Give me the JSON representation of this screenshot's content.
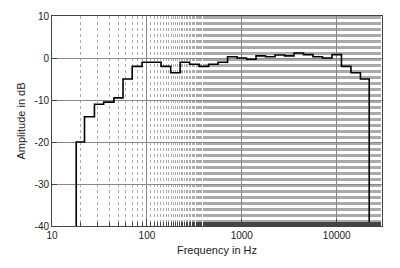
{
  "chart_data": {
    "type": "line",
    "line_style": "step",
    "x_label": "Frequency in Hz",
    "y_label": "Amplitude in dB",
    "x": [
      18,
      18,
      22,
      28,
      35,
      45,
      56,
      70,
      89,
      112,
      141,
      178,
      224,
      282,
      355,
      447,
      562,
      708,
      891,
      1122,
      1413,
      1778,
      2239,
      2818,
      3548,
      4467,
      5623,
      7079,
      8913,
      11220,
      14125,
      17783,
      22000
    ],
    "values": [
      -40,
      -20,
      -14,
      -11,
      -10.5,
      -9.5,
      -5,
      -2,
      -1,
      -1,
      -2,
      -3.5,
      -1,
      -1.5,
      -2,
      -1.5,
      -1,
      0.3,
      0,
      -0.3,
      0.5,
      0.3,
      0.7,
      0.5,
      1.2,
      0.8,
      0.3,
      0,
      0.8,
      -2,
      -3.5,
      -5,
      -40
    ],
    "color": "#000000",
    "log": "x",
    "xlim": [
      10,
      30000
    ],
    "xticks": [
      10,
      100,
      1000,
      10000
    ],
    "ylim": [
      -40,
      10
    ],
    "yticks": [
      -40,
      -30,
      -20,
      -10,
      0,
      10
    ],
    "grid": true
  }
}
